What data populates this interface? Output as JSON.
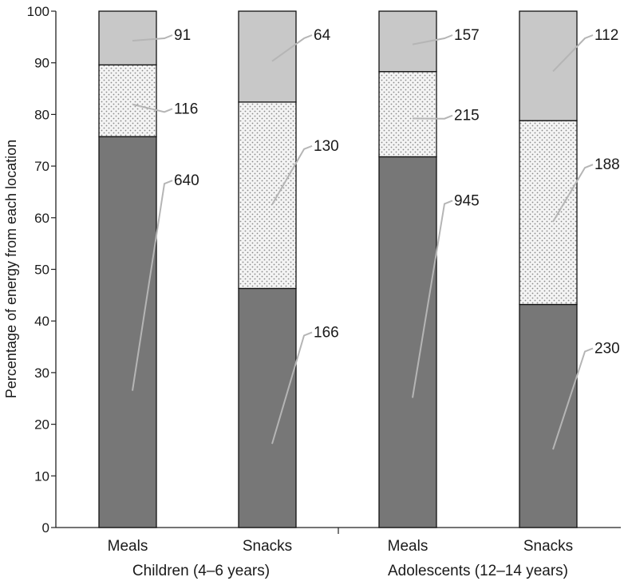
{
  "chart_data": {
    "type": "bar",
    "stacked": true,
    "ylabel": "Percentage of energy from each location",
    "ylim": [
      0,
      100
    ],
    "yticks": [
      0,
      10,
      20,
      30,
      40,
      50,
      60,
      70,
      80,
      90,
      100
    ],
    "categories": [
      "Meals",
      "Snacks",
      "Meals",
      "Snacks"
    ],
    "groups": [
      {
        "label": "Children (4–6 years)",
        "categories": [
          0,
          1
        ]
      },
      {
        "label": "Adolescents (12–14 years)",
        "categories": [
          2,
          3
        ]
      }
    ],
    "series": [
      {
        "color": "#777777",
        "pattern": "solid",
        "values": [
          75.7,
          46.3,
          71.8,
          43.2
        ],
        "labels": [
          "640",
          "166",
          "945",
          "230"
        ]
      },
      {
        "color": "#f0f0f0",
        "pattern": "dots",
        "values": [
          13.9,
          36.1,
          16.5,
          35.6
        ],
        "labels": [
          "116",
          "130",
          "215",
          "188"
        ]
      },
      {
        "color": "#c8c8c8",
        "pattern": "solid",
        "values": [
          10.4,
          17.6,
          11.7,
          21.2
        ],
        "labels": [
          "91",
          "64",
          "157",
          "112"
        ]
      }
    ]
  }
}
